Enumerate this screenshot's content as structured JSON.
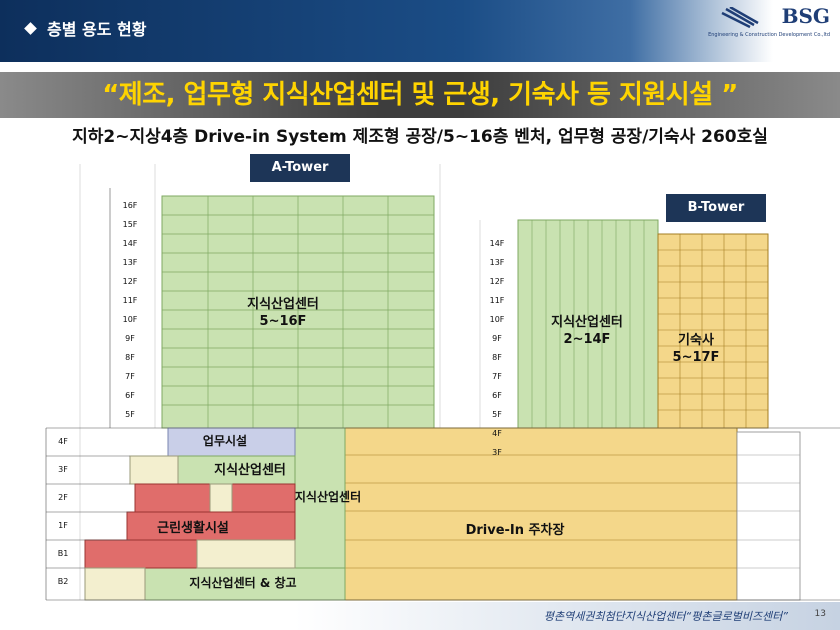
{
  "header": {
    "section_title": "층별 용도 현황"
  },
  "logo": {
    "name": "BSG",
    "subtitle": "Engineering & Construction Development Co.,ltd"
  },
  "banner": {
    "text": "“제조, 업무형 지식산업센터 및 근생, 기숙사 등 지원시설 ”"
  },
  "subtitle": "지하2~지상4층 Drive-in System 제조형 공장/5~16층 벤처, 업무형 공장/기숙사 260호실",
  "towers": {
    "a": "A-Tower",
    "b": "B-Tower"
  },
  "floors_left_upper": [
    "16F",
    "15F",
    "14F",
    "13F",
    "12F",
    "11F",
    "10F",
    "9F",
    "8F",
    "7F",
    "6F",
    "5F"
  ],
  "floors_left_lower": [
    "4F",
    "3F",
    "2F",
    "1F",
    "B1",
    "B2"
  ],
  "floors_mid": [
    "14F",
    "13F",
    "12F",
    "11F",
    "10F",
    "9F",
    "8F",
    "7F",
    "6F",
    "5F",
    "4F",
    "3F"
  ],
  "labels": {
    "a_center": "지식산업센터\n5~16F",
    "b_center": "지식산업센터\n2~14F",
    "dorm": "기숙사\n5~17F",
    "office": "업무시설",
    "center_3f": "지식산업센터",
    "center_2f": "지식산업센터",
    "retail": "근린생활시설",
    "parking": "Drive-In 주차장",
    "b2": "지식산업센터 & 창고"
  },
  "footer": {
    "text": "평촌역세권최첨단지식산업센터“평촌글로벌비즈센터”",
    "page": "13"
  },
  "colors": {
    "green": "#c9e2b1",
    "yellow": "#f4d78a",
    "red": "#e06d6b",
    "lavender": "#c9cfe8",
    "cream": "#f3efcf",
    "orange": "#e9a63a"
  }
}
